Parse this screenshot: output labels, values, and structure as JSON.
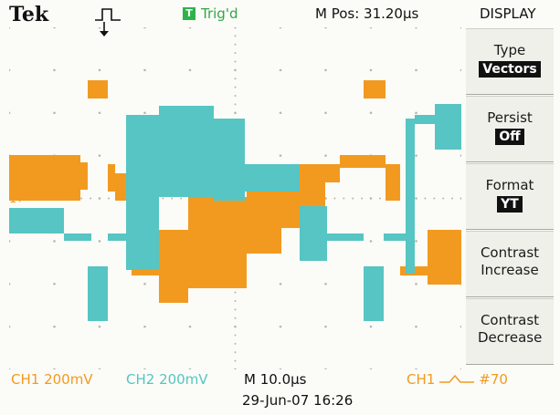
{
  "header": {
    "brand": "Tek",
    "trigger_state": "Trig'd",
    "trigger_badge": "T",
    "m_pos": "M Pos: 31.20µs",
    "menu_title": "DISPLAY"
  },
  "menu": [
    {
      "label": "Type",
      "value": "Vectors"
    },
    {
      "label": "Persist",
      "value": "Off"
    },
    {
      "label": "Format",
      "value": "YT"
    },
    {
      "label": "Contrast Increase",
      "value": ""
    },
    {
      "label": "Contrast Decrease",
      "value": ""
    }
  ],
  "footer": {
    "ch1": "CH1  200mV",
    "ch2": "CH2  200mV",
    "timebase": "M 10.0µs",
    "datetime": "29-Jun-07 16:26",
    "trig_source": "CH1",
    "trig_freq": "#70"
  },
  "ground_marker": "1+",
  "colors": {
    "ch1": "#f29a1f",
    "ch2": "#56c5c3",
    "trig_badge": "#2eb34a",
    "grid_dot": "#b7b7b0"
  }
}
